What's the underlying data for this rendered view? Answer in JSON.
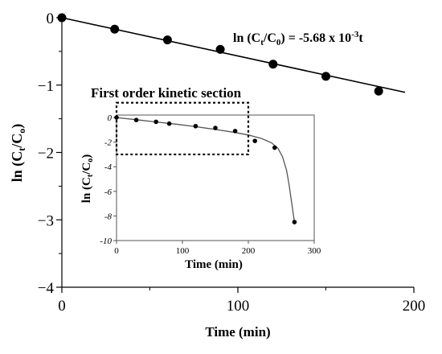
{
  "chart_data": [
    {
      "type": "scatter",
      "role": "main",
      "xlabel": "Time (min)",
      "ylabel_parts": {
        "base": "ln (C",
        "sub1": "t",
        "mid": "/C",
        "sub2": "o",
        "end": ")"
      },
      "xlim": [
        0,
        200
      ],
      "ylim": [
        -4,
        0
      ],
      "xticks": [
        0,
        100,
        200
      ],
      "yticks": [
        0,
        -1,
        -2,
        -3,
        -4
      ],
      "series": [
        {
          "x": [
            0,
            30,
            60,
            90,
            120,
            150,
            180
          ],
          "y": [
            0,
            -0.17,
            -0.33,
            -0.47,
            -0.69,
            -0.87,
            -1.09
          ]
        }
      ],
      "fit_line": {
        "slope": -0.00568,
        "intercept": 0,
        "x_range": [
          0,
          195
        ]
      },
      "annotation": {
        "base": "ln (C",
        "sub1": "t",
        "mid": "/C",
        "sub2": "0",
        "eq": ") = -5.68 x 10",
        "sup": "-3",
        "end": "t"
      }
    },
    {
      "type": "scatter",
      "role": "inset",
      "title": "First order kinetic section",
      "xlabel": "Time (min)",
      "ylabel_parts": {
        "base": "ln (C",
        "sub1": "t",
        "mid": "/C",
        "sub2": "o",
        "end": ")"
      },
      "xlim": [
        0,
        300
      ],
      "ylim": [
        -10,
        0.2
      ],
      "xticks": [
        0,
        100,
        200,
        300
      ],
      "yticks": [
        0,
        -2,
        -4,
        -6,
        -8,
        -10
      ],
      "series": [
        {
          "x": [
            0,
            30,
            60,
            80,
            120,
            150,
            180,
            210,
            240,
            270
          ],
          "y": [
            0,
            -0.2,
            -0.35,
            -0.5,
            -0.7,
            -0.85,
            -1.1,
            -1.9,
            -2.45,
            -8.5
          ]
        }
      ],
      "curve": {
        "x": [
          0,
          30,
          60,
          90,
          120,
          150,
          180,
          200,
          220,
          235,
          245,
          252,
          258,
          262,
          266,
          270
        ],
        "y": [
          0,
          -0.18,
          -0.36,
          -0.54,
          -0.74,
          -0.97,
          -1.22,
          -1.42,
          -1.7,
          -2.05,
          -2.5,
          -3.2,
          -4.3,
          -5.5,
          -7.0,
          -8.5
        ]
      },
      "highlight_box": {
        "x": [
          0,
          200
        ],
        "y": [
          -3,
          1.2
        ]
      }
    }
  ]
}
